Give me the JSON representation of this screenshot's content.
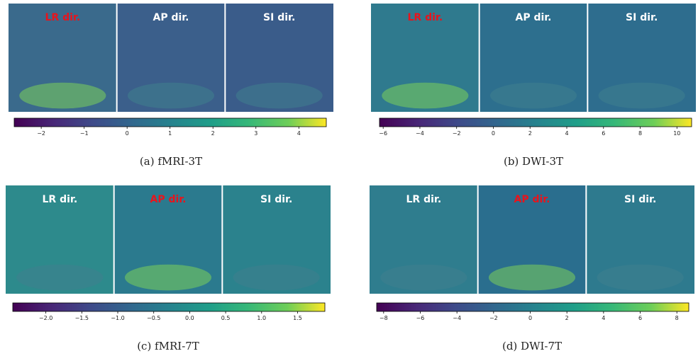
{
  "panels": [
    {
      "caption": "(a)  fMRI-3T",
      "labels": [
        "LR dir.",
        "AP dir.",
        "SI dir."
      ],
      "highlighted": 0,
      "colorbar": {
        "lim": [
          -2.63,
          4.64
        ],
        "ticks": [
          {
            "value": -2,
            "label": "−2"
          },
          {
            "value": -1,
            "label": "−1"
          },
          0,
          1,
          2,
          3,
          4
        ]
      }
    },
    {
      "caption": "(b)  DWI-3T",
      "labels": [
        "LR dir.",
        "AP dir.",
        "SI dir."
      ],
      "highlighted": 0,
      "colorbar": {
        "lim": [
          -6.2,
          10.8
        ],
        "ticks": [
          {
            "value": -6,
            "label": "−6"
          },
          {
            "value": -4,
            "label": "−4"
          },
          {
            "value": -2,
            "label": "−2"
          },
          0,
          2,
          4,
          6,
          8,
          10
        ]
      }
    },
    {
      "caption": "(c)  fMRI-7T",
      "labels": [
        "LR dir.",
        "AP dir.",
        "SI dir."
      ],
      "highlighted": 1,
      "colorbar": {
        "lim": [
          -2.46,
          1.88
        ],
        "ticks": [
          {
            "value": -2,
            "label": "−2.0"
          },
          {
            "value": -1.5,
            "label": "−1.5"
          },
          {
            "value": -1,
            "label": "−1.0"
          },
          {
            "value": -0.5,
            "label": "−0.5"
          },
          {
            "value": 0,
            "label": "0.0"
          },
          0.5,
          {
            "value": 1,
            "label": "1.0"
          },
          1.5
        ]
      }
    },
    {
      "caption": "(d)  DWI-7T",
      "labels": [
        "LR dir.",
        "AP dir.",
        "SI dir."
      ],
      "highlighted": 1,
      "colorbar": {
        "lim": [
          -8.38,
          8.65
        ],
        "ticks": [
          {
            "value": -8,
            "label": "−8"
          },
          {
            "value": -6,
            "label": "−6"
          },
          {
            "value": -4,
            "label": "−4"
          },
          {
            "value": -2,
            "label": "−2"
          },
          0,
          2,
          4,
          6,
          8
        ]
      }
    }
  ]
}
